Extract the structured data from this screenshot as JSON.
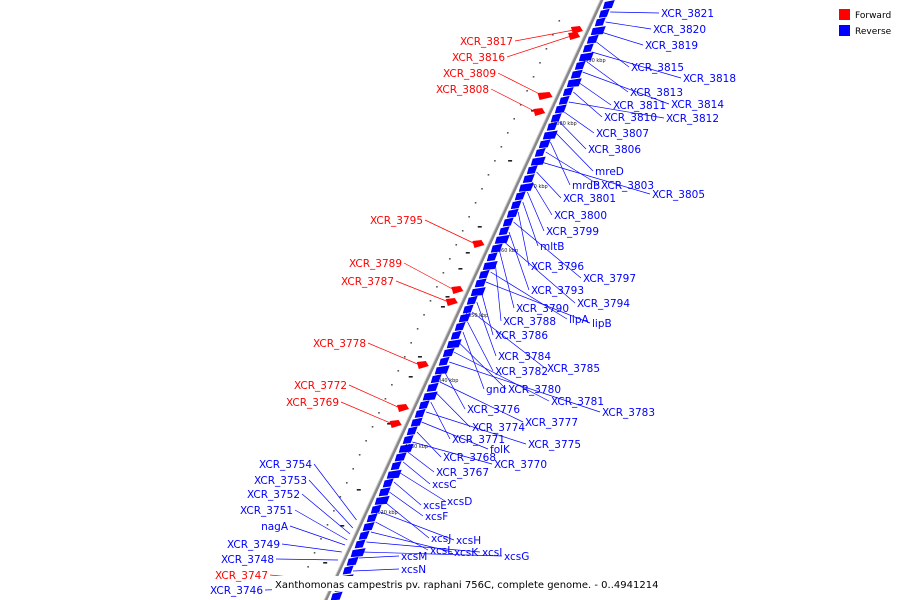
{
  "caption": "Xanthomonas campestris pv. raphani 756C, complete genome. - 0..4941214",
  "legend": {
    "forward": {
      "label": "Forward",
      "color": "#ff0000"
    },
    "reverse": {
      "label": "Reverse",
      "color": "#0000ff"
    }
  },
  "colors": {
    "forward": "#ff0000",
    "reverse": "#0000ff",
    "backbone": "#999999"
  },
  "scale_ticks": [
    "4090 kbp",
    "4080 kbp",
    "4070 kbp",
    "4060 kbp",
    "4050 kbp",
    "4040 kbp",
    "4030 kbp",
    "4020 kbp",
    "4010 kbp"
  ],
  "forward_genes": [
    "XCR_3817",
    "XCR_3816",
    "XCR_3809",
    "XCR_3808",
    "XCR_3795",
    "XCR_3789",
    "XCR_3787",
    "XCR_3778",
    "XCR_3772",
    "XCR_3769",
    "XCR_3747"
  ],
  "reverse_left_genes": [
    "XCR_3754",
    "XCR_3753",
    "XCR_3752",
    "XCR_3751",
    "nagA",
    "XCR_3749",
    "XCR_3748",
    "XCR_3746"
  ],
  "reverse_right_genes": [
    "XCR_3821",
    "XCR_3820",
    "XCR_3819",
    "XCR_3815",
    "XCR_3818",
    "XCR_3813",
    "XCR_3814",
    "XCR_3811",
    "XCR_3810",
    "XCR_3812",
    "XCR_3807",
    "XCR_3806",
    "mreD",
    "mrdB",
    "XCR_3803",
    "XCR_3805",
    "XCR_3801",
    "XCR_3800",
    "XCR_3799",
    "mltB",
    "XCR_3796",
    "XCR_3797",
    "XCR_3793",
    "XCR_3794",
    "XCR_3790",
    "XCR_3788",
    "lipA",
    "lipB",
    "XCR_3786",
    "XCR_3784",
    "XCR_3785",
    "XCR_3782",
    "gnd",
    "XCR_3780",
    "XCR_3781",
    "XCR_3783",
    "XCR_3776",
    "XCR_3777",
    "XCR_3774",
    "XCR_3771",
    "XCR_3775",
    "folK",
    "XCR_3768",
    "XCR_3770",
    "XCR_3767",
    "xcsC",
    "xcsD",
    "xcsE",
    "xcsF",
    "xcsJ",
    "xcsH",
    "xcsL",
    "xcsK",
    "xcsI",
    "xcsG",
    "xcsM",
    "xcsN"
  ]
}
